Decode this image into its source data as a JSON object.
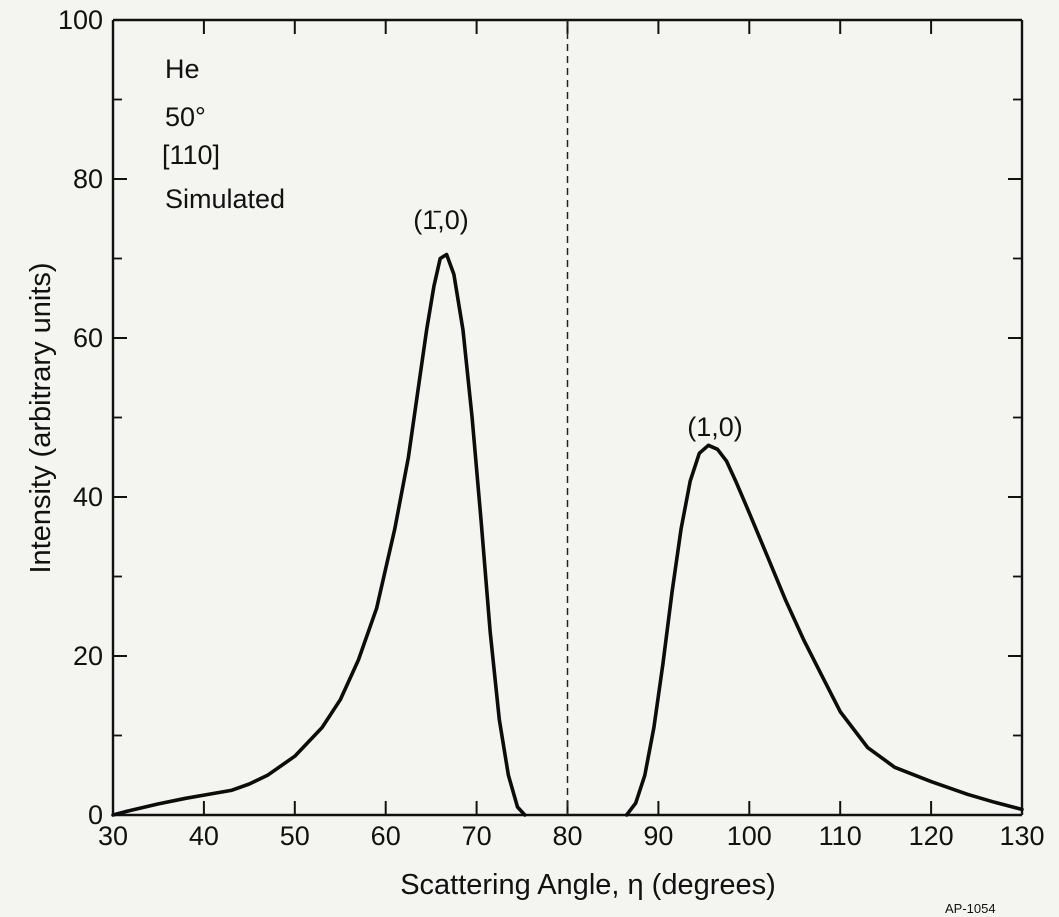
{
  "chart_data": {
    "type": "line",
    "xlabel": "Scattering Angle, η (degrees)",
    "ylabel": "Intensity (arbitrary units)",
    "xlim": [
      30,
      130
    ],
    "ylim": [
      0,
      100
    ],
    "xticks": [
      30,
      40,
      50,
      60,
      70,
      80,
      90,
      100,
      110,
      120,
      130
    ],
    "yticks": [
      0,
      20,
      40,
      60,
      80,
      100
    ],
    "grid": false,
    "reference_line": {
      "x": 80,
      "style": "dashed"
    },
    "annotation_lines": [
      "He",
      "50°",
      "[110]",
      "Simulated"
    ],
    "peak_labels": [
      {
        "text": "(1̄,0)",
        "x": 66.5,
        "y": 76
      },
      {
        "text": "(1,0)",
        "x": 95.5,
        "y": 51
      }
    ],
    "figure_id": "AP-1054",
    "series": [
      {
        "segments": [
          {
            "x": [
              30,
              32,
              35,
              38,
              40,
              43,
              45,
              47,
              50,
              53,
              55,
              57,
              59,
              61,
              62.5,
              63.5,
              64.5,
              65.3,
              66,
              66.7,
              67.5,
              68.5,
              69.5,
              70.5,
              71.5,
              72.5,
              73.5,
              74.5,
              75.3
            ],
            "y": [
              0,
              0.6,
              1.4,
              2.1,
              2.5,
              3.1,
              3.9,
              5.0,
              7.4,
              11.0,
              14.5,
              19.5,
              26.0,
              36.0,
              45.0,
              53.0,
              61.0,
              66.5,
              70.0,
              70.5,
              68.0,
              61.0,
              50.0,
              37.0,
              23.0,
              12.0,
              5.0,
              1.0,
              0
            ]
          },
          {
            "x": [
              86.5,
              87.5,
              88.5,
              89.5,
              90.5,
              91.5,
              92.5,
              93.5,
              94.5,
              95.5,
              96.5,
              97.5,
              98.5,
              100,
              102,
              104,
              106,
              108,
              110,
              113,
              116,
              120,
              124,
              127,
              130
            ],
            "y": [
              0,
              1.5,
              5.0,
              11.0,
              19.0,
              28.0,
              36.0,
              42.0,
              45.5,
              46.5,
              46.0,
              44.5,
              42.0,
              38.0,
              32.5,
              27.0,
              22.0,
              17.5,
              13.0,
              8.5,
              6.0,
              4.2,
              2.6,
              1.6,
              0.7
            ]
          }
        ]
      }
    ]
  }
}
